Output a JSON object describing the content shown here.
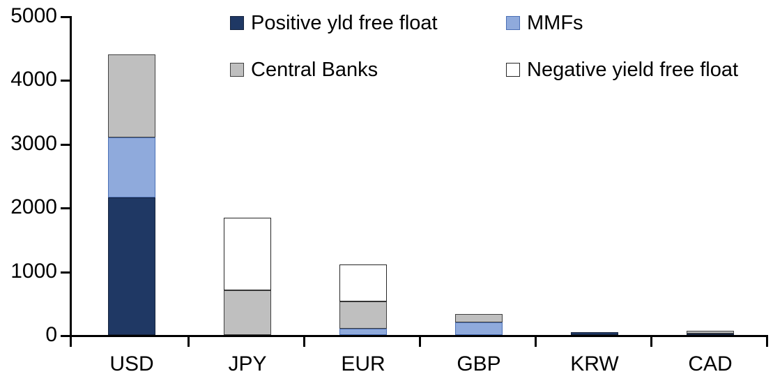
{
  "chart_data": {
    "type": "bar",
    "stacked": true,
    "title": "",
    "xlabel": "",
    "ylabel": "",
    "grid": false,
    "legend_position": "top",
    "categories": [
      "USD",
      "JPY",
      "EUR",
      "GBP",
      "KRW",
      "CAD"
    ],
    "series": [
      {
        "name": "Positive yld free float",
        "color": "#1F3864",
        "border_color": "#16243E",
        "values": [
          2150,
          0,
          0,
          0,
          45,
          20
        ]
      },
      {
        "name": "MMFs",
        "color": "#8FAADC",
        "border_color": "#4A6FB5",
        "values": [
          950,
          0,
          100,
          200,
          0,
          0
        ]
      },
      {
        "name": "Central Banks",
        "color": "#BFBFBF",
        "border_color": "#404040",
        "values": [
          1300,
          700,
          430,
          130,
          0,
          50
        ]
      },
      {
        "name": "Negative yield free float",
        "color": "#FFFFFF",
        "border_color": "#262626",
        "values": [
          0,
          1140,
          580,
          0,
          0,
          0
        ]
      }
    ],
    "stack_totals": [
      4400,
      1840,
      1110,
      330,
      45,
      70
    ],
    "ylim": [
      0,
      5000
    ],
    "yticks": [
      0,
      1000,
      2000,
      3000,
      4000,
      5000
    ],
    "ytick_labels": [
      "0",
      "1000",
      "2000",
      "3000",
      "4000",
      "5000"
    ]
  },
  "colors": {
    "axis": "#000000",
    "background": "#FFFFFF",
    "text": "#000000"
  }
}
